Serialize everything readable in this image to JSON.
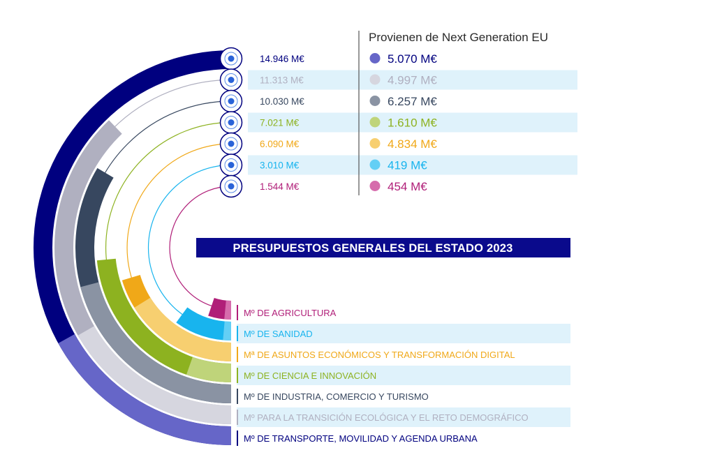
{
  "chart_data": {
    "type": "radial-bar",
    "title": "PRESUPUESTOS GENERALES DEL ESTADO 2023",
    "ngeu_heading": "Provienen de Next Generation EU",
    "unit": "M€",
    "ministries": [
      {
        "name": "Mº DE TRANSPORTE, MOVILIDAD Y AGENDA URBANA",
        "total": 14946,
        "ngeu": 5070,
        "total_label": "14.946 M€",
        "ngeu_label": "5.070 M€",
        "color": "#00007f",
        "ngeu_color": "#6666c8",
        "icon": "train-icon"
      },
      {
        "name": "Mº PARA LA TRANSICIÓN ECOLÓGICA Y EL RETO DEMOGRÁFICO",
        "total": 11313,
        "ngeu": 4997,
        "total_label": "11.313 M€",
        "ngeu_label": "4.997 M€",
        "color": "#b0b0c0",
        "ngeu_color": "#d6d6df",
        "icon": "tree-icon"
      },
      {
        "name": "Mº DE INDUSTRIA, COMERCIO Y TURISMO",
        "total": 10030,
        "ngeu": 6257,
        "total_label": "10.030 M€",
        "ngeu_label": "6.257 M€",
        "color": "#37475f",
        "ngeu_color": "#8a93a3",
        "icon": "factory-icon"
      },
      {
        "name": "Mº DE CIENCIA E INNOVACIÓN",
        "total": 7021,
        "ngeu": 1610,
        "total_label": "7.021 M€",
        "ngeu_label": "1.610 M€",
        "color": "#8db220",
        "ngeu_color": "#bfd47a",
        "icon": "network-icon"
      },
      {
        "name": "Mª DE ASUNTOS ECONÓMICOS Y TRANSFORMACIÓN DIGITAL",
        "total": 6090,
        "ngeu": 4834,
        "total_label": "6.090 M€",
        "ngeu_label": "4.834 M€",
        "color": "#f0a818",
        "ngeu_color": "#f7cf70",
        "icon": "coins-icon"
      },
      {
        "name": "Mº DE SANIDAD",
        "total": 3010,
        "ngeu": 419,
        "total_label": "3.010 M€",
        "ngeu_label": "419 M€",
        "color": "#18b4ee",
        "ngeu_color": "#63cff5",
        "icon": "heartbeat-icon"
      },
      {
        "name": "Mº DE AGRICULTURA",
        "total": 1544,
        "ngeu": 454,
        "total_label": "1.544 M€",
        "ngeu_label": "454 M€",
        "color": "#b01e78",
        "ngeu_color": "#d66cac",
        "icon": "apple-icon"
      }
    ]
  }
}
